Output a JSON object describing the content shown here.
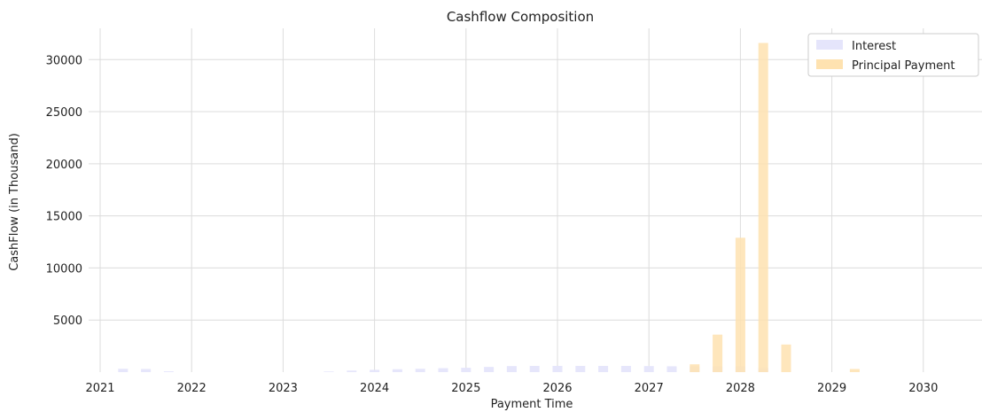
{
  "chart_data": {
    "type": "bar",
    "title": "Cashflow Composition",
    "xlabel": "Payment Time",
    "ylabel": "CashFlow (in Thousand)",
    "xlim": [
      2021.0,
      2030.6
    ],
    "ylim": [
      0,
      33000
    ],
    "grid": true,
    "legend_placement": "top-right",
    "x_ticks": [
      2021,
      2022,
      2023,
      2024,
      2025,
      2026,
      2027,
      2028,
      2029,
      2030
    ],
    "y_ticks": [
      5000,
      10000,
      15000,
      20000,
      25000,
      30000
    ],
    "x": [
      2021.25,
      2021.5,
      2021.75,
      2022.0,
      2022.25,
      2022.5,
      2022.75,
      2023.0,
      2023.25,
      2023.5,
      2023.75,
      2024.0,
      2024.25,
      2024.5,
      2024.75,
      2025.0,
      2025.25,
      2025.5,
      2025.75,
      2026.0,
      2026.25,
      2026.5,
      2026.75,
      2027.0,
      2027.25,
      2027.5,
      2027.75,
      2028.0,
      2028.25,
      2028.5,
      2028.75,
      2029.0,
      2029.25
    ],
    "series": [
      {
        "name": "Interest",
        "color": "#e5e5fb",
        "values": [
          320,
          300,
          80,
          0,
          0,
          0,
          0,
          0,
          0,
          60,
          150,
          220,
          280,
          320,
          380,
          420,
          500,
          580,
          600,
          600,
          600,
          600,
          600,
          580,
          560,
          550,
          550,
          550,
          400,
          0,
          0,
          0,
          0
        ]
      },
      {
        "name": "Principal Payment",
        "color": "#fee2b0",
        "values": [
          0,
          0,
          0,
          0,
          0,
          0,
          0,
          0,
          0,
          0,
          0,
          0,
          0,
          0,
          0,
          0,
          0,
          0,
          0,
          0,
          0,
          0,
          0,
          0,
          0,
          750,
          3600,
          12900,
          31600,
          2650,
          0,
          0,
          300
        ]
      }
    ]
  }
}
